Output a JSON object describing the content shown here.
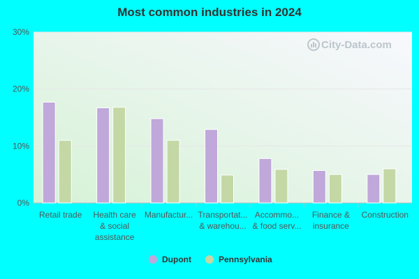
{
  "chart_data": {
    "type": "bar",
    "title": "Most common industries in 2024",
    "categories": [
      [
        "Retail trade"
      ],
      [
        "Health care",
        "& social",
        "assistance"
      ],
      [
        "Manufactur..."
      ],
      [
        "Transportat...",
        "& warehou..."
      ],
      [
        "Accommo...",
        "& food serv..."
      ],
      [
        "Finance &",
        "insurance"
      ],
      [
        "Construction"
      ]
    ],
    "series": [
      {
        "name": "Dupont",
        "color": "#c0a8da",
        "values": [
          17.7,
          16.7,
          14.8,
          12.9,
          7.8,
          5.7,
          5.0
        ]
      },
      {
        "name": "Pennsylvania",
        "color": "#c4d8a6",
        "values": [
          11.0,
          16.8,
          11.0,
          4.9,
          5.9,
          5.0,
          6.0
        ]
      }
    ],
    "ylim": [
      0,
      30
    ],
    "yticks": [
      "0%",
      "10%",
      "20%",
      "30%"
    ],
    "grid": true,
    "legend": "bottom"
  },
  "watermark": "City-Data.com"
}
